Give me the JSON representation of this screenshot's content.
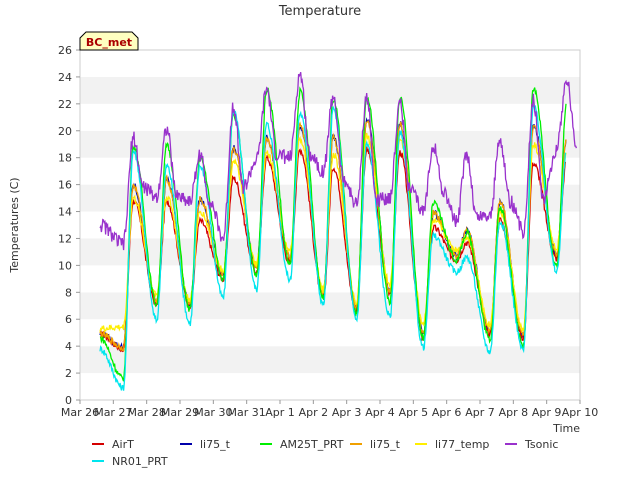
{
  "chart_data": {
    "type": "line",
    "title": "Temperature",
    "xlabel": "Time",
    "ylabel": "Temperatures (C)",
    "station_badge": "BC_met",
    "ylim": [
      0,
      26
    ],
    "yticks": [
      0,
      2,
      4,
      6,
      8,
      10,
      12,
      14,
      16,
      18,
      20,
      22,
      24,
      26
    ],
    "xlim": [
      0,
      15
    ],
    "xticks": [
      {
        "x": 0,
        "label": "Mar 26"
      },
      {
        "x": 1,
        "label": "Mar 27"
      },
      {
        "x": 2,
        "label": "Mar 28"
      },
      {
        "x": 3,
        "label": "Mar 29"
      },
      {
        "x": 4,
        "label": "Mar 30"
      },
      {
        "x": 5,
        "label": "Mar 31"
      },
      {
        "x": 6,
        "label": "Apr 1"
      },
      {
        "x": 7,
        "label": "Apr 2"
      },
      {
        "x": 8,
        "label": "Apr 3"
      },
      {
        "x": 9,
        "label": "Apr 4"
      },
      {
        "x": 10,
        "label": "Apr 5"
      },
      {
        "x": 11,
        "label": "Apr 6"
      },
      {
        "x": 12,
        "label": "Apr 7"
      },
      {
        "x": 13,
        "label": "Apr 8"
      },
      {
        "x": 14,
        "label": "Apr 9"
      },
      {
        "x": 15,
        "label": "Apr 10"
      }
    ],
    "grid_bands": true,
    "legend_position": "bottom",
    "daily": {
      "days": [
        0.8,
        1.8,
        2.8,
        3.8,
        4.8,
        5.8,
        6.8,
        7.8,
        8.8,
        9.8,
        10.8,
        11.8,
        12.8,
        13.8
      ],
      "Tsonic_max": [
        19.5,
        20.2,
        18.2,
        21.9,
        23.1,
        24.2,
        22.6,
        22.5,
        22.1,
        19.0,
        18.3,
        19.3,
        22.3,
        23.8
      ],
      "Tsonic_min": [
        11.6,
        15.1,
        14.8,
        12.0,
        17.8,
        18.0,
        17.0,
        14.5,
        15.1,
        14.0,
        13.2,
        13.7,
        12.5,
        18.7
      ],
      "Tsonic_night": [
        15.8,
        15.2,
        14.7,
        15.8,
        18.2,
        18.3,
        16.4,
        14.8,
        15.6,
        15.5,
        13.6,
        14.8,
        15.0,
        18.7
      ],
      "AM25T_max": [
        18.9,
        18.9,
        18.0,
        21.1,
        23.1,
        22.9,
        22.3,
        22.5,
        22.5,
        14.6,
        12.4,
        14.3,
        23.2,
        22.2
      ],
      "AM25T_min": [
        1.6,
        7.1,
        6.7,
        9.0,
        9.2,
        10.0,
        7.6,
        6.3,
        7.3,
        4.6,
        10.4,
        4.5,
        4.0,
        9.9
      ],
      "AirT_max": [
        14.8,
        14.8,
        13.3,
        16.5,
        18.0,
        18.6,
        17.3,
        18.6,
        18.4,
        12.8,
        11.7,
        13.4,
        17.6,
        17.8
      ],
      "AirT_min": [
        3.8,
        7.1,
        7.0,
        9.0,
        9.5,
        10.2,
        7.6,
        6.6,
        8.0,
        4.6,
        10.4,
        4.8,
        4.5,
        10.5
      ],
      "li75_t_max": [
        15.9,
        16.4,
        14.9,
        18.7,
        19.5,
        20.4,
        19.5,
        20.8,
        20.5,
        13.9,
        12.6,
        14.8,
        20.3,
        19.5
      ],
      "li75_t_min": [
        3.9,
        7.4,
        7.1,
        9.3,
        9.9,
        10.6,
        7.9,
        6.9,
        8.2,
        4.9,
        10.7,
        5.1,
        4.8,
        10.8
      ],
      "li77_temp_max": [
        15.0,
        15.1,
        14.0,
        17.8,
        18.4,
        19.4,
        18.3,
        19.6,
        19.4,
        13.3,
        12.1,
        14.0,
        19.0,
        18.5
      ],
      "li77_temp_min": [
        5.4,
        7.8,
        7.4,
        9.7,
        10.1,
        11.0,
        8.2,
        7.3,
        8.6,
        5.7,
        11.2,
        5.6,
        5.2,
        11.2
      ],
      "NR01_PRT_max": [
        18.5,
        17.4,
        17.4,
        21.5,
        20.5,
        21.3,
        21.6,
        19.0,
        19.8,
        12.2,
        10.6,
        13.3,
        21.8,
        18.5
      ],
      "NR01_PRT_min": [
        0.9,
        5.9,
        5.7,
        7.6,
        8.2,
        8.9,
        7.1,
        6.0,
        6.2,
        3.9,
        9.5,
        3.6,
        3.7,
        9.5
      ]
    },
    "series": [
      {
        "name": "AirT",
        "color": "#d40000",
        "key": "AirT"
      },
      {
        "name": "NR01_PRT",
        "color": "#00e5ee",
        "key": "NR01_PRT"
      },
      {
        "name": "li75_t",
        "color": "#0000aa",
        "key": "li75_t"
      },
      {
        "name": "AM25T_PRT",
        "color": "#00ee00",
        "key": "AM25T"
      },
      {
        "name": "li75_t",
        "color": "#f0a000",
        "key": "li75_t"
      },
      {
        "name": "li77_temp",
        "color": "#ffee00",
        "key": "li77_temp"
      },
      {
        "name": "Tsonic",
        "color": "#9932cc",
        "key": "Tsonic"
      }
    ]
  }
}
